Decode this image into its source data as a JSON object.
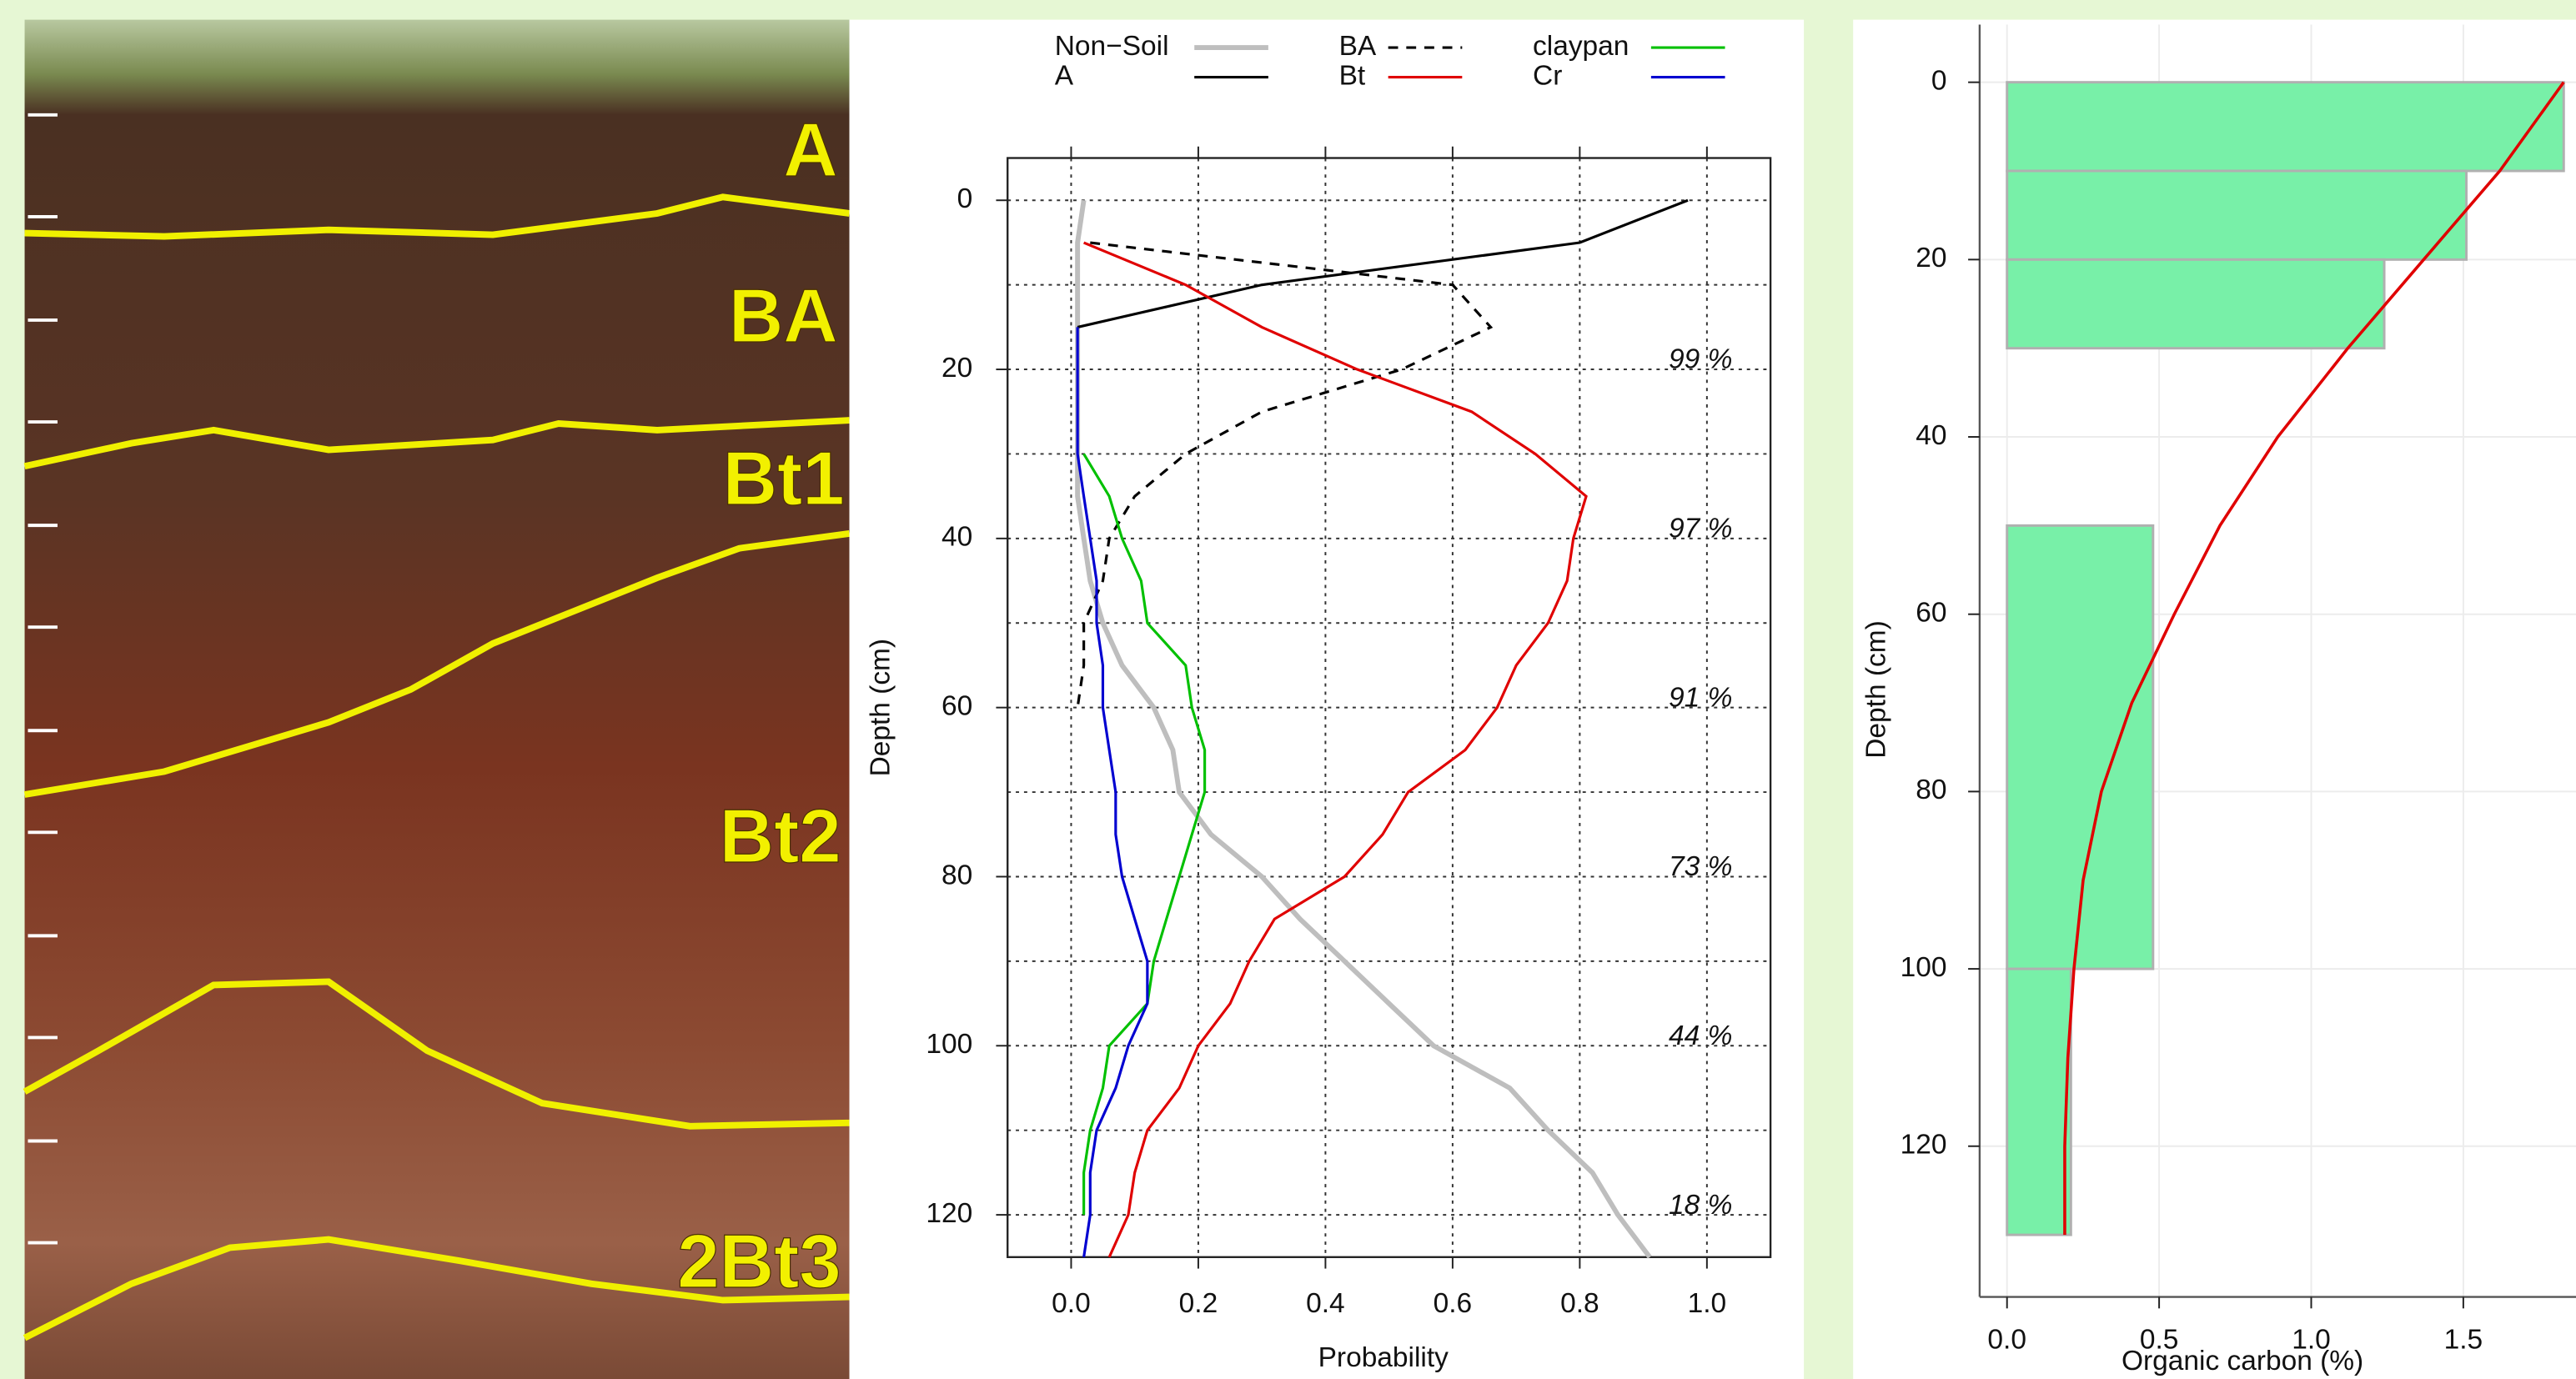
{
  "photo": {
    "horizons": [
      "A",
      "BA",
      "Bt1",
      "Bt2",
      "2Bt3"
    ]
  },
  "chart_data": [
    {
      "type": "line",
      "xlabel": "Probability",
      "ylabel": "Depth (cm)",
      "depths": [
        0,
        5,
        10,
        15,
        20,
        25,
        30,
        35,
        40,
        45,
        50,
        55,
        60,
        65,
        70,
        75,
        80,
        85,
        90,
        95,
        100,
        105,
        110,
        115,
        120,
        125
      ],
      "series": [
        {
          "name": "Non−Soil",
          "color": "#bebebe",
          "dash": false,
          "values": [
            0.02,
            0.01,
            0.01,
            0.01,
            0.01,
            0.01,
            0.01,
            0.01,
            0.02,
            0.03,
            0.05,
            0.08,
            0.13,
            0.16,
            0.17,
            0.22,
            0.3,
            0.36,
            0.43,
            0.5,
            0.57,
            0.69,
            0.75,
            0.82,
            0.86,
            0.91
          ]
        },
        {
          "name": "A",
          "color": "#000000",
          "dash": false,
          "values": [
            0.97,
            0.8,
            0.3,
            0.01,
            null,
            null,
            null,
            null,
            null,
            null,
            null,
            null,
            null,
            null,
            null,
            null,
            null,
            null,
            null,
            null,
            null,
            null,
            null,
            null,
            null,
            null
          ]
        },
        {
          "name": "BA",
          "color": "#000000",
          "dash": true,
          "values": [
            null,
            0.03,
            0.6,
            0.66,
            0.52,
            0.3,
            0.18,
            0.1,
            0.06,
            0.05,
            0.02,
            0.02,
            0.01,
            null,
            null,
            null,
            null,
            null,
            null,
            null,
            null,
            null,
            null,
            null,
            null,
            null
          ]
        },
        {
          "name": "Bt",
          "color": "#e00000",
          "dash": false,
          "values": [
            null,
            0.02,
            0.18,
            0.3,
            0.45,
            0.63,
            0.73,
            0.81,
            0.79,
            0.78,
            0.75,
            0.7,
            0.67,
            0.62,
            0.53,
            0.49,
            0.43,
            0.32,
            0.28,
            0.25,
            0.2,
            0.17,
            0.12,
            0.1,
            0.09,
            0.06
          ]
        },
        {
          "name": "claypan",
          "color": "#00c000",
          "dash": false,
          "values": [
            null,
            null,
            null,
            null,
            null,
            null,
            0.02,
            0.06,
            0.08,
            0.11,
            0.12,
            0.18,
            0.19,
            0.21,
            0.21,
            0.19,
            0.17,
            0.15,
            0.13,
            0.12,
            0.06,
            0.05,
            0.03,
            0.02,
            0.02,
            null
          ]
        },
        {
          "name": "Cr",
          "color": "#0000d0",
          "dash": false,
          "values": [
            null,
            null,
            null,
            0.01,
            0.01,
            0.01,
            0.01,
            0.02,
            0.03,
            0.04,
            0.04,
            0.05,
            0.05,
            0.06,
            0.07,
            0.07,
            0.08,
            0.1,
            0.12,
            0.12,
            0.09,
            0.07,
            0.04,
            0.03,
            0.03,
            0.02
          ]
        }
      ],
      "xlim": [
        -0.1,
        1.1
      ],
      "ylim": [
        -5,
        125
      ],
      "y_reversed": true,
      "xticks": [
        {
          "value": 0,
          "label": "0.0"
        },
        0.2,
        0.4,
        0.6,
        0.8,
        {
          "value": 1,
          "label": "1.0"
        }
      ],
      "yticks": [
        0,
        20,
        40,
        60,
        80,
        100,
        120
      ],
      "ygrid": [
        0,
        10,
        20,
        30,
        40,
        50,
        60,
        70,
        80,
        90,
        100,
        110,
        120
      ],
      "grid": true,
      "annotations": [
        {
          "text": "99 %",
          "y": 19
        },
        {
          "text": "97 %",
          "y": 39
        },
        {
          "text": "91 %",
          "y": 59
        },
        {
          "text": "73 %",
          "y": 79
        },
        {
          "text": "44 %",
          "y": 99
        },
        {
          "text": "18 %",
          "y": 119
        }
      ]
    },
    {
      "type": "bar",
      "xlabel": "Organic carbon (%)",
      "ylabel": "Depth (cm)",
      "top": [
        0,
        10,
        20,
        50,
        100
      ],
      "bottom": [
        10,
        20,
        30,
        100,
        130
      ],
      "values": [
        1.83,
        1.51,
        1.24,
        0.48,
        0.21
      ],
      "color": "#78f0a8",
      "line": {
        "color": "#e00000",
        "depths": [
          0,
          10,
          20,
          30,
          40,
          50,
          60,
          70,
          80,
          90,
          100,
          110,
          120,
          130
        ],
        "values": [
          1.83,
          1.62,
          1.37,
          1.12,
          0.89,
          0.7,
          0.55,
          0.41,
          0.31,
          0.25,
          0.22,
          0.2,
          0.19,
          0.19
        ]
      },
      "xlim": [
        -0.09,
        2.0
      ],
      "ylim": [
        -6.5,
        137
      ],
      "y_reversed": true,
      "xticks": [
        {
          "value": 0,
          "label": "0.0"
        },
        0.5,
        {
          "value": 1,
          "label": "1.0"
        },
        1.5
      ],
      "yticks": [
        0,
        20,
        40,
        60,
        80,
        100,
        120
      ],
      "grid": true
    }
  ]
}
